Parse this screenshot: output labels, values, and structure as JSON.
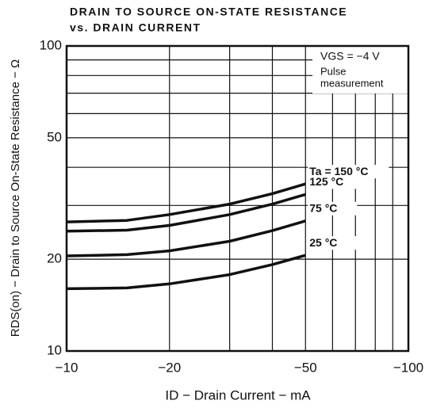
{
  "chart_data": {
    "type": "line",
    "title": "DRAIN TO SOURCE ON-STATE RESISTANCE",
    "subtitle": "vs. DRAIN CURRENT",
    "xlabel": "ID − Drain Current − mA",
    "ylabel": "RDS(on) − Drain to Source On-State Resistance − Ω",
    "annotations": [
      "VGS = −4 V",
      "Pulse",
      "measurement"
    ],
    "xscale": "log",
    "yscale": "log",
    "grid": true,
    "xlim": [
      -10,
      -100
    ],
    "ylim": [
      10,
      100
    ],
    "xticks": [
      {
        "value": -10,
        "label": "−10"
      },
      {
        "value": -20,
        "label": "−20"
      },
      {
        "value": -50,
        "label": "−50"
      },
      {
        "value": -100,
        "label": "−100"
      }
    ],
    "xgrid": [
      -30,
      -40,
      -60,
      -70,
      -80,
      -90
    ],
    "yticks": [
      10,
      20,
      50,
      100
    ],
    "ygrid": [
      30,
      40,
      60,
      70,
      80,
      90
    ],
    "x": [
      -10,
      -15,
      -20,
      -30,
      -40,
      -50
    ],
    "series": [
      {
        "name": "Ta = 150 °C",
        "color": "#111111",
        "values": [
          26.5,
          26.8,
          28,
          30.3,
          32.8,
          35.3
        ]
      },
      {
        "name": "125 °C",
        "color": "#111111",
        "values": [
          24.7,
          24.9,
          25.8,
          28,
          30.3,
          32.6
        ]
      },
      {
        "name": "75 °C",
        "color": "#111111",
        "values": [
          20.5,
          20.7,
          21.3,
          22.9,
          24.8,
          26.7
        ]
      },
      {
        "name": "25 °C",
        "color": "#111111",
        "values": [
          16,
          16.1,
          16.6,
          17.8,
          19.2,
          20.6
        ]
      }
    ]
  }
}
